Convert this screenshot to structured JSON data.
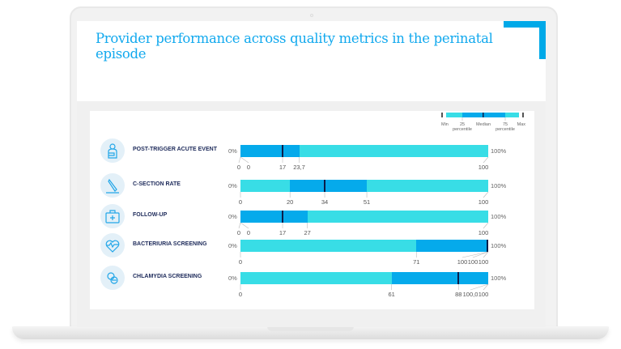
{
  "title": "Provider performance across quality metrics in the perinatal episode",
  "colors": {
    "accent": "#00a9e8",
    "outer": "#38dde6",
    "inner": "#05aaeb",
    "median": "#0b1d4a"
  },
  "legend": {
    "min": "Min",
    "p25": "25\npercentile",
    "median": "Median",
    "p75": "75\npercentile",
    "max": "Max"
  },
  "axis": {
    "start": "0%",
    "end": "100%"
  },
  "chart_data": {
    "type": "bar",
    "subtype": "horizontal box-range (min, 25th percentile, median, 75th percentile, max)",
    "xlim": [
      0,
      100
    ],
    "categories": [
      "POST-TRIGGER ACUTE EVENT",
      "C-SECTION RATE",
      "FOLLOW-UP",
      "BACTERIURIA SCREENING",
      "CHLAMYDIA SCREENING"
    ],
    "icons": [
      "patient-icon",
      "scalpel-icon",
      "first-aid-kit-icon",
      "heart-pulse-icon",
      "pills-icon"
    ],
    "rows": [
      {
        "min": 0,
        "p25": 0,
        "median": 17,
        "p75": 23.7,
        "max": 100,
        "labels": [
          "0",
          "0",
          "17",
          "23,7",
          "100"
        ]
      },
      {
        "min": 0,
        "p25": 20,
        "median": 34,
        "p75": 51,
        "max": 100,
        "labels": [
          "0",
          "20",
          "34",
          "51",
          "100"
        ]
      },
      {
        "min": 0,
        "p25": 0,
        "median": 17,
        "p75": 27,
        "max": 100,
        "labels": [
          "0",
          "0",
          "17",
          "27",
          "100"
        ]
      },
      {
        "min": 0,
        "p25": 71,
        "median": 100,
        "p75": 100,
        "max": 100,
        "labels": [
          "0",
          "71",
          "100",
          "100",
          "100"
        ]
      },
      {
        "min": 0,
        "p25": 61,
        "median": 88,
        "p75": 100,
        "max": 100,
        "labels": [
          "0",
          "61",
          "88",
          "100,0",
          "100"
        ]
      }
    ]
  }
}
